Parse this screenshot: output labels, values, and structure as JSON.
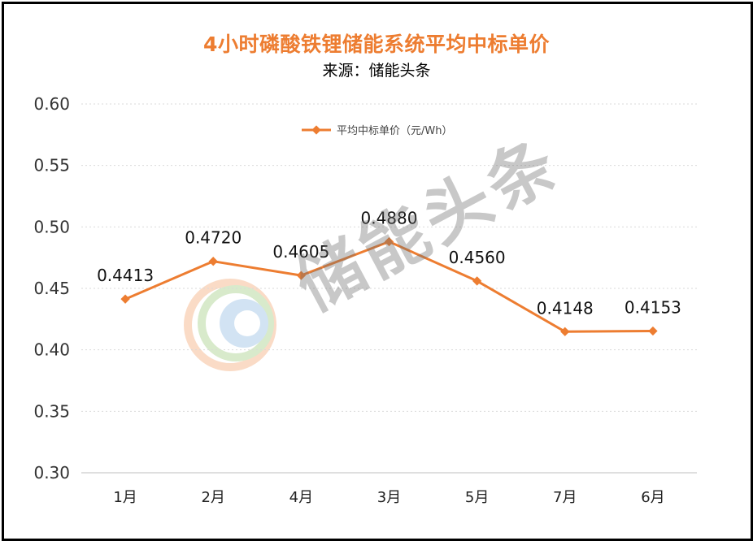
{
  "chart_data": {
    "type": "line",
    "title": "4小时磷酸铁锂储能系统平均中标单价",
    "subtitle": "来源：储能头条",
    "categories": [
      "1月",
      "2月",
      "4月",
      "3月",
      "5月",
      "7月",
      "6月"
    ],
    "series": [
      {
        "name": "平均中标单价（元/Wh）",
        "values": [
          0.4413,
          0.472,
          0.4605,
          0.488,
          0.456,
          0.4148,
          0.4153
        ],
        "labels": [
          "0.4413",
          "0.4720",
          "0.4605",
          "0.4880",
          "0.4560",
          "0.4148",
          "0.4153"
        ],
        "color": "#ED7D31"
      }
    ],
    "yticks": [
      "0.30",
      "0.35",
      "0.40",
      "0.45",
      "0.50",
      "0.55",
      "0.60"
    ],
    "ylim": [
      0.3,
      0.6
    ],
    "grid": true,
    "legend_position": "top-center"
  },
  "watermark": {
    "text": "储能头条"
  },
  "colors": {
    "accent": "#ED7D31",
    "grid": "#d9d9d9",
    "axis": "#bfbfbf"
  }
}
